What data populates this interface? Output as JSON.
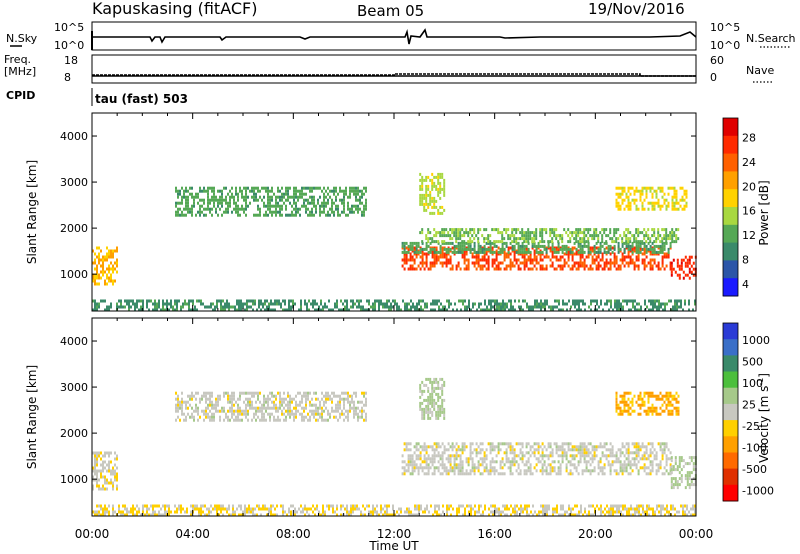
{
  "header": {
    "station": "Kapuskasing (fitACF)",
    "beam": "Beam 05",
    "date": "19/Nov/2016",
    "mode": "tau (fast) 503"
  },
  "top_panels": {
    "nsky": {
      "label": "N.Sky",
      "ticks": [
        "10^5",
        "10^0"
      ]
    },
    "nsearch": {
      "label": "N.Search",
      "ticks": [
        "10^5",
        "10^0"
      ]
    },
    "freq": {
      "label_1": "Freq.",
      "label_2": "[MHz]",
      "ticks": [
        "18",
        "8"
      ]
    },
    "nave": {
      "label": "Nave",
      "ticks": [
        "60",
        "0"
      ]
    },
    "cpid": {
      "label": "CPID"
    }
  },
  "colors": {
    "power": [
      "#1a1aff",
      "#2b55a8",
      "#3a8a6a",
      "#55a855",
      "#a8d840",
      "#ffd200",
      "#ffa000",
      "#ff6000",
      "#ff2a00",
      "#e00000"
    ],
    "velocity": [
      "#2a3bd6",
      "#3a6fc8",
      "#3a8a6a",
      "#4cbf3c",
      "#a6c98a",
      "#c8c8c0",
      "#ffd000",
      "#ffa000",
      "#ff6a00",
      "#e03000",
      "#ff0000"
    ]
  },
  "chart_data": [
    {
      "type": "heatmap",
      "name": "power",
      "xlabel": "Time UT",
      "ylabel": "Slant Range [km]",
      "xlim": [
        0,
        24
      ],
      "ylim": [
        200,
        4500
      ],
      "x_ticks": [
        "00:00",
        "04:00",
        "08:00",
        "12:00",
        "16:00",
        "20:00",
        "00:00"
      ],
      "y_ticks": [
        1000,
        2000,
        3000,
        4000
      ],
      "colorbar": {
        "label": "Power [dB]",
        "ticks": [
          "28",
          "24",
          "20",
          "16",
          "12",
          "8",
          "4"
        ],
        "range": [
          0,
          30
        ]
      },
      "regions": [
        {
          "t": [
            0.0,
            1.0
          ],
          "r": [
            800,
            1600
          ],
          "level": 18
        },
        {
          "t": [
            0.0,
            24.0
          ],
          "r": [
            200,
            450
          ],
          "level": 8
        },
        {
          "t": [
            3.3,
            10.9
          ],
          "r": [
            2300,
            2900
          ],
          "level": 10
        },
        {
          "t": [
            12.3,
            23.0
          ],
          "r": [
            1100,
            1600
          ],
          "level": 24
        },
        {
          "t": [
            12.3,
            23.0
          ],
          "r": [
            1500,
            1700
          ],
          "level": 10
        },
        {
          "t": [
            13.0,
            23.3
          ],
          "r": [
            1700,
            2000
          ],
          "level": 12
        },
        {
          "t": [
            13.0,
            14.0
          ],
          "r": [
            2300,
            3200
          ],
          "level": 14
        },
        {
          "t": [
            23.0,
            24.0
          ],
          "r": [
            900,
            1400
          ],
          "level": 26
        },
        {
          "t": [
            20.8,
            23.6
          ],
          "r": [
            2400,
            2900
          ],
          "level": 16
        }
      ]
    },
    {
      "type": "heatmap",
      "name": "velocity",
      "xlabel": "Time UT",
      "ylabel": "Slant Range [km]",
      "xlim": [
        0,
        24
      ],
      "ylim": [
        200,
        4500
      ],
      "x_ticks": [
        "00:00",
        "04:00",
        "08:00",
        "12:00",
        "16:00",
        "20:00",
        "00:00"
      ],
      "y_ticks": [
        1000,
        2000,
        3000,
        4000
      ],
      "colorbar": {
        "label": "Velocity [m s",
        "label_sup": "-1",
        "ticks": [
          "1000",
          "500",
          "100",
          "25",
          "-25",
          "-100",
          "-500",
          "-1000"
        ],
        "range": [
          -1000,
          1000
        ]
      },
      "regions": [
        {
          "t": [
            0.0,
            1.0
          ],
          "r": [
            800,
            1600
          ],
          "level": -60
        },
        {
          "t": [
            0.0,
            24.0
          ],
          "r": [
            200,
            450
          ],
          "level": -90
        },
        {
          "t": [
            3.3,
            10.9
          ],
          "r": [
            2300,
            2900
          ],
          "level": 0
        },
        {
          "t": [
            12.3,
            23.0
          ],
          "r": [
            1100,
            1800
          ],
          "level": 0
        },
        {
          "t": [
            13.0,
            14.0
          ],
          "r": [
            2300,
            3200
          ],
          "level": 150
        },
        {
          "t": [
            20.8,
            23.3
          ],
          "r": [
            2400,
            2900
          ],
          "level": -300
        },
        {
          "t": [
            23.0,
            24.0
          ],
          "r": [
            800,
            1500
          ],
          "level": 120
        }
      ]
    }
  ]
}
